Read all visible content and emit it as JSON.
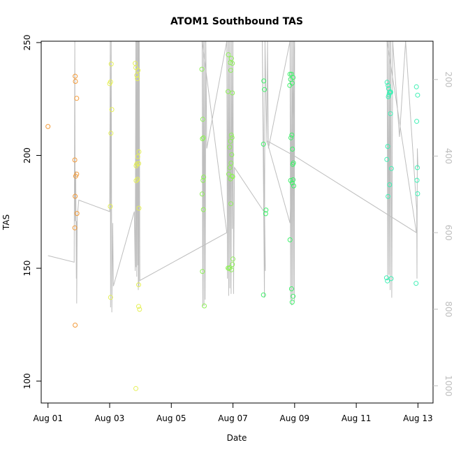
{
  "chart_data": {
    "type": "scatter",
    "title": "ATOM1 Southbound TAS",
    "xlabel": "Date",
    "ylabel": "TAS",
    "x_ticks": [
      "Aug 01",
      "Aug 03",
      "Aug 05",
      "Aug 07",
      "Aug 09",
      "Aug 11",
      "Aug 13"
    ],
    "x_tick_days": [
      1,
      3,
      5,
      7,
      9,
      11,
      13
    ],
    "xlim_days": [
      0.78,
      13.49
    ],
    "y_left_ticks": [
      100,
      150,
      200,
      250
    ],
    "ylim_left": [
      90.3,
      250.6
    ],
    "y_right_ticks": [
      200,
      400,
      600,
      800,
      1000
    ],
    "ylim_right_reversed": [
      1045,
      100
    ],
    "grid": false,
    "point_style": "open-circle",
    "colors": {
      "line": "#bebebe",
      "right_axis": "#bebebe",
      "aug01_02": "#f39b3a",
      "aug03_04": "#e5f055",
      "aug06_07": "#8ff05a",
      "aug08_09": "#3ff06a",
      "aug12_13": "#3ff0b5"
    },
    "series": [
      {
        "color_key": "aug01_02",
        "points": [
          [
            1.0,
            212.8
          ],
          [
            1.88,
            235.1
          ],
          [
            1.89,
            232.8
          ],
          [
            1.93,
            225.3
          ],
          [
            1.87,
            198.0
          ],
          [
            1.93,
            191.7
          ],
          [
            1.9,
            190.8
          ],
          [
            1.94,
            174.3
          ],
          [
            1.88,
            181.9
          ],
          [
            1.87,
            167.9
          ],
          [
            1.88,
            124.8
          ]
        ]
      },
      {
        "color_key": "aug03_04",
        "points": [
          [
            3.05,
            240.5
          ],
          [
            3.0,
            231.8
          ],
          [
            3.03,
            232.6
          ],
          [
            3.07,
            220.3
          ],
          [
            3.04,
            209.8
          ],
          [
            3.02,
            177.4
          ],
          [
            3.03,
            137.1
          ],
          [
            3.83,
            240.8
          ],
          [
            3.85,
            238.9
          ],
          [
            3.92,
            237.7
          ],
          [
            3.88,
            235.5
          ],
          [
            3.9,
            234.0
          ],
          [
            3.95,
            201.6
          ],
          [
            3.91,
            199.4
          ],
          [
            3.88,
            196.2
          ],
          [
            3.94,
            196.4
          ],
          [
            3.86,
            195.4
          ],
          [
            3.9,
            189.4
          ],
          [
            3.86,
            188.8
          ],
          [
            3.95,
            176.6
          ],
          [
            3.94,
            142.7
          ],
          [
            3.94,
            133.1
          ],
          [
            3.97,
            131.8
          ],
          [
            3.85,
            96.7
          ]
        ]
      },
      {
        "color_key": "aug06_07",
        "points": [
          [
            5.99,
            238.2
          ],
          [
            6.02,
            216.0
          ],
          [
            6.01,
            207.4
          ],
          [
            6.04,
            207.8
          ],
          [
            6.05,
            190.4
          ],
          [
            6.03,
            188.9
          ],
          [
            6.0,
            182.9
          ],
          [
            6.04,
            176.0
          ],
          [
            6.01,
            148.6
          ],
          [
            6.07,
            133.3
          ],
          [
            6.85,
            244.6
          ],
          [
            6.95,
            243.0
          ],
          [
            6.91,
            241.1
          ],
          [
            6.98,
            240.8
          ],
          [
            6.93,
            237.7
          ],
          [
            6.84,
            228.3
          ],
          [
            6.98,
            227.7
          ],
          [
            6.95,
            209.0
          ],
          [
            6.97,
            207.9
          ],
          [
            6.92,
            206.3
          ],
          [
            6.89,
            203.7
          ],
          [
            6.96,
            200.3
          ],
          [
            6.94,
            196.6
          ],
          [
            6.9,
            194.6
          ],
          [
            6.86,
            191.7
          ],
          [
            6.99,
            190.6
          ],
          [
            6.92,
            189.6
          ],
          [
            6.97,
            190.8
          ],
          [
            6.93,
            178.6
          ],
          [
            7.0,
            154.1
          ],
          [
            6.98,
            151.7
          ],
          [
            6.9,
            150.2
          ],
          [
            6.87,
            149.9
          ],
          [
            6.84,
            150.1
          ],
          [
            6.95,
            149.3
          ]
        ]
      },
      {
        "color_key": "aug08_09",
        "points": [
          [
            8.0,
            233.0
          ],
          [
            8.02,
            229.2
          ],
          [
            7.99,
            205.0
          ],
          [
            8.07,
            175.8
          ],
          [
            8.06,
            174.2
          ],
          [
            7.99,
            138.2
          ],
          [
            8.85,
            236.0
          ],
          [
            8.9,
            236.0
          ],
          [
            8.95,
            234.5
          ],
          [
            8.87,
            233.7
          ],
          [
            8.92,
            232.0
          ],
          [
            8.84,
            231.0
          ],
          [
            8.91,
            209.0
          ],
          [
            8.88,
            207.8
          ],
          [
            8.93,
            202.8
          ],
          [
            8.96,
            196.7
          ],
          [
            8.94,
            196.0
          ],
          [
            8.87,
            188.9
          ],
          [
            8.95,
            189.2
          ],
          [
            8.92,
            187.8
          ],
          [
            8.97,
            186.5
          ],
          [
            8.85,
            162.6
          ],
          [
            8.9,
            140.9
          ],
          [
            8.95,
            137.6
          ],
          [
            8.92,
            135.0
          ]
        ]
      },
      {
        "color_key": "aug12_13",
        "points": [
          [
            12.0,
            232.4
          ],
          [
            12.03,
            231.0
          ],
          [
            12.05,
            229.6
          ],
          [
            12.1,
            228.2
          ],
          [
            12.08,
            227.7
          ],
          [
            12.12,
            228.0
          ],
          [
            12.06,
            226.8
          ],
          [
            12.04,
            226.0
          ],
          [
            12.09,
            227.8
          ],
          [
            12.11,
            218.5
          ],
          [
            12.02,
            204.0
          ],
          [
            11.99,
            198.2
          ],
          [
            12.14,
            194.2
          ],
          [
            12.08,
            187.0
          ],
          [
            12.03,
            181.8
          ],
          [
            11.98,
            145.8
          ],
          [
            12.01,
            144.4
          ],
          [
            12.13,
            145.4
          ],
          [
            12.95,
            230.4
          ],
          [
            12.99,
            226.7
          ],
          [
            12.96,
            215.1
          ],
          [
            12.98,
            194.6
          ],
          [
            12.97,
            189.0
          ],
          [
            12.99,
            183.0
          ],
          [
            12.94,
            143.3
          ]
        ]
      }
    ],
    "line_series": {
      "axis": "right",
      "points": [
        [
          1.0,
          660
        ],
        [
          1.85,
          677
        ],
        [
          1.87,
          100
        ],
        [
          1.88,
          570
        ],
        [
          1.9,
          440
        ],
        [
          1.92,
          720
        ],
        [
          1.93,
          570
        ],
        [
          1.93,
          785
        ],
        [
          1.95,
          560
        ],
        [
          2.0,
          515
        ],
        [
          3.0,
          545
        ],
        [
          3.02,
          100
        ],
        [
          3.03,
          795
        ],
        [
          3.05,
          100
        ],
        [
          3.07,
          808
        ],
        [
          3.1,
          575
        ],
        [
          3.12,
          740
        ],
        [
          3.8,
          545
        ],
        [
          3.83,
          700
        ],
        [
          3.85,
          100
        ],
        [
          3.86,
          690
        ],
        [
          3.87,
          100
        ],
        [
          3.88,
          715
        ],
        [
          3.9,
          100
        ],
        [
          3.91,
          685
        ],
        [
          3.92,
          100
        ],
        [
          3.93,
          750
        ],
        [
          3.94,
          100
        ],
        [
          3.95,
          740
        ],
        [
          3.96,
          100
        ],
        [
          3.98,
          725
        ],
        [
          6.8,
          600
        ],
        [
          6.0,
          100
        ],
        [
          6.02,
          792
        ],
        [
          6.04,
          100
        ],
        [
          6.06,
          792
        ],
        [
          6.08,
          100
        ],
        [
          6.1,
          775
        ],
        [
          6.12,
          100
        ],
        [
          6.15,
          380
        ],
        [
          6.8,
          100
        ],
        [
          6.82,
          720
        ],
        [
          6.84,
          100
        ],
        [
          6.86,
          765
        ],
        [
          6.88,
          100
        ],
        [
          6.9,
          745
        ],
        [
          6.92,
          100
        ],
        [
          6.94,
          760
        ],
        [
          6.96,
          100
        ],
        [
          6.98,
          590
        ],
        [
          7.0,
          100
        ],
        [
          7.02,
          760
        ],
        [
          7.05,
          430
        ],
        [
          8.0,
          545
        ],
        [
          8.05,
          700
        ],
        [
          7.95,
          100
        ],
        [
          8.02,
          770
        ],
        [
          8.04,
          100
        ],
        [
          8.1,
          365
        ],
        [
          8.12,
          100
        ],
        [
          8.15,
          380
        ],
        [
          8.85,
          100
        ],
        [
          8.87,
          775
        ],
        [
          8.89,
          100
        ],
        [
          8.91,
          790
        ],
        [
          8.93,
          100
        ],
        [
          8.95,
          760
        ],
        [
          8.97,
          100
        ],
        [
          8.99,
          780
        ],
        [
          9.0,
          100
        ],
        [
          8.85,
          575
        ],
        [
          8.1,
          360
        ],
        [
          9.0,
          400
        ],
        [
          12.95,
          600
        ],
        [
          12.0,
          100
        ],
        [
          12.02,
          725
        ],
        [
          12.04,
          100
        ],
        [
          12.06,
          710
        ],
        [
          12.08,
          100
        ],
        [
          12.1,
          750
        ],
        [
          12.12,
          100
        ],
        [
          12.15,
          770
        ],
        [
          12.18,
          100
        ],
        [
          12.4,
          350
        ],
        [
          12.6,
          100
        ],
        [
          12.96,
          540
        ],
        [
          12.97,
          720
        ],
        [
          12.98,
          380
        ],
        [
          13.0,
          430
        ]
      ]
    }
  }
}
